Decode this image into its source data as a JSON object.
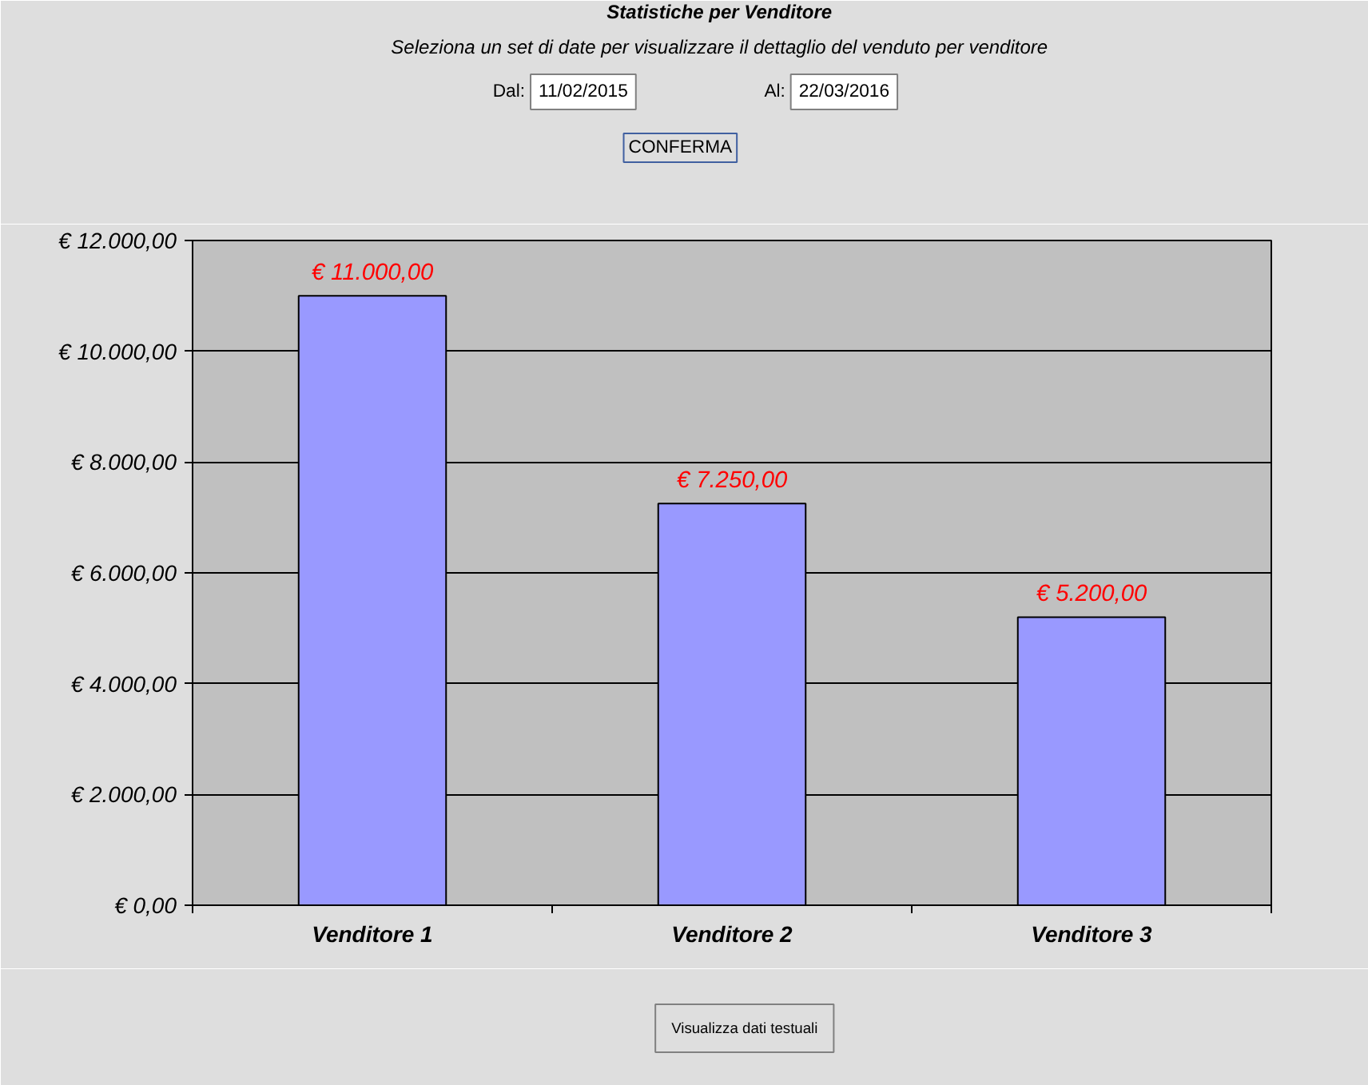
{
  "chart_data": {
    "type": "bar",
    "title": "Statistiche per Venditore",
    "subtitle": "Seleziona un set di date per visualizzare il dettaglio del venduto per venditore",
    "annotations": [
      "Dal:",
      "11/02/2015",
      "Al:",
      "22/03/2016",
      "CONFERMA",
      "Visualizza dati testuali"
    ],
    "categories": [
      "Venditore 1",
      "Venditore 2",
      "Venditore 3"
    ],
    "values": [
      11000,
      7250,
      5200
    ],
    "color": "#9999ff",
    "value_labels": [
      "€ 11.000,00",
      "€ 7.250,00",
      "€ 5.200,00"
    ],
    "ylim": [
      0,
      12000
    ],
    "yticks": [
      {
        "value": 0,
        "label": "€ 0,00"
      },
      {
        "value": 2000,
        "label": "€ 2.000,00"
      },
      {
        "value": 4000,
        "label": "€ 4.000,00"
      },
      {
        "value": 6000,
        "label": "€ 6.000,00"
      },
      {
        "value": 8000,
        "label": "€ 8.000,00"
      },
      {
        "value": 10000,
        "label": "€ 10.000,00"
      },
      {
        "value": 12000,
        "label": "€ 12.000,00"
      }
    ],
    "grid": "y"
  }
}
